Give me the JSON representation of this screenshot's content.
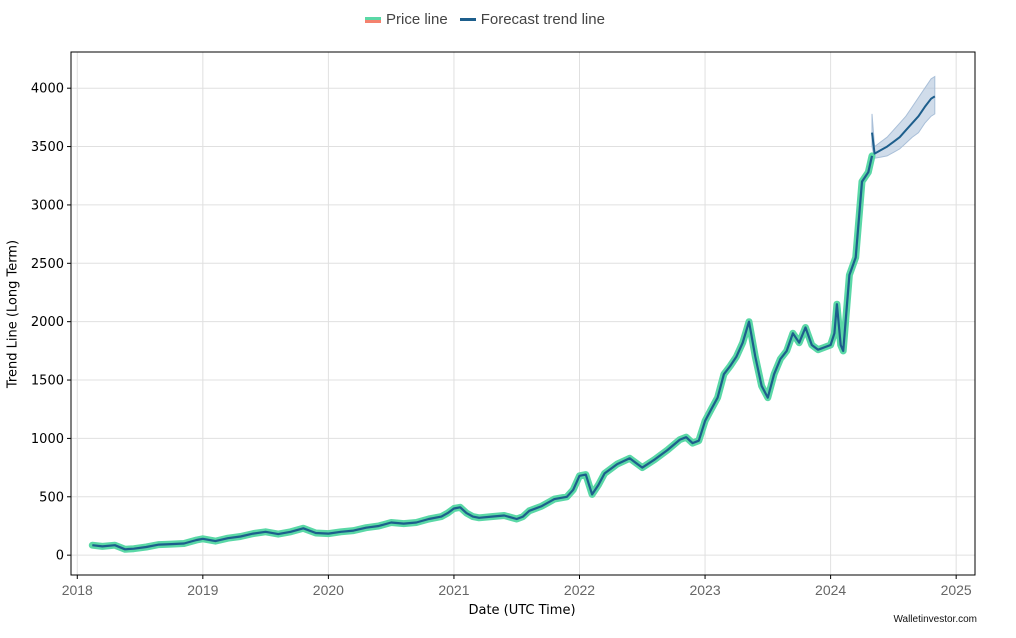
{
  "legend": {
    "price_label": "Price line",
    "forecast_label": "Forecast trend line"
  },
  "watermark": "Walletinvestor.com",
  "colors": {
    "price_line": "#5ad8a6",
    "price_line_alt": "#f4826e",
    "forecast_line": "#1d5e8c",
    "confidence_band": "#a9bfd8",
    "grid": "#e0e0e0"
  },
  "chart_data": {
    "type": "line",
    "title": "",
    "xlabel": "Date (UTC Time)",
    "ylabel": "Trend Line (Long Term)",
    "xlim": [
      2017.95,
      2025.15
    ],
    "ylim": [
      -170,
      4310
    ],
    "xticks": [
      2018,
      2019,
      2020,
      2021,
      2022,
      2023,
      2024,
      2025
    ],
    "xtick_labels": [
      "2018",
      "2019",
      "2020",
      "2021",
      "2022",
      "2023",
      "2024",
      "2025"
    ],
    "yticks": [
      0,
      500,
      1000,
      1500,
      2000,
      2500,
      3000,
      3500,
      4000
    ],
    "ytick_labels": [
      "0",
      "500",
      "1000",
      "1500",
      "2000",
      "2500",
      "3000",
      "3500",
      "4000"
    ],
    "grid": true,
    "legend_position": "top-center",
    "series": [
      {
        "name": "Price line",
        "x": [
          2018.12,
          2018.2,
          2018.3,
          2018.38,
          2018.45,
          2018.55,
          2018.65,
          2018.75,
          2018.85,
          2018.95,
          2019.0,
          2019.1,
          2019.2,
          2019.3,
          2019.4,
          2019.5,
          2019.6,
          2019.7,
          2019.8,
          2019.9,
          2020.0,
          2020.1,
          2020.2,
          2020.3,
          2020.4,
          2020.5,
          2020.6,
          2020.7,
          2020.8,
          2020.9,
          2020.95,
          2021.0,
          2021.05,
          2021.1,
          2021.15,
          2021.2,
          2021.3,
          2021.4,
          2021.5,
          2021.55,
          2021.6,
          2021.7,
          2021.8,
          2021.9,
          2021.95,
          2022.0,
          2022.05,
          2022.1,
          2022.15,
          2022.2,
          2022.3,
          2022.4,
          2022.5,
          2022.6,
          2022.7,
          2022.8,
          2022.85,
          2022.9,
          2022.95,
          2023.0,
          2023.05,
          2023.1,
          2023.15,
          2023.2,
          2023.25,
          2023.3,
          2023.35,
          2023.4,
          2023.45,
          2023.5,
          2023.55,
          2023.6,
          2023.65,
          2023.7,
          2023.75,
          2023.8,
          2023.85,
          2023.9,
          2023.95,
          2024.0,
          2024.03,
          2024.05,
          2024.08,
          2024.1,
          2024.15,
          2024.2,
          2024.25,
          2024.3,
          2024.33
        ],
        "values": [
          85,
          75,
          85,
          50,
          55,
          70,
          90,
          95,
          100,
          130,
          140,
          120,
          145,
          160,
          185,
          200,
          180,
          200,
          230,
          190,
          185,
          200,
          210,
          235,
          250,
          280,
          270,
          280,
          310,
          330,
          360,
          400,
          410,
          360,
          330,
          320,
          330,
          340,
          310,
          330,
          380,
          420,
          480,
          500,
          560,
          680,
          690,
          520,
          600,
          700,
          780,
          830,
          750,
          820,
          900,
          990,
          1010,
          960,
          980,
          1150,
          1250,
          1350,
          1550,
          1620,
          1700,
          1820,
          2000,
          1700,
          1450,
          1350,
          1550,
          1680,
          1750,
          1900,
          1820,
          1950,
          1800,
          1760,
          1780,
          1800,
          1900,
          2150,
          1800,
          1750,
          2400,
          2550,
          3200,
          3280,
          3420
        ]
      },
      {
        "name": "Forecast trend line",
        "x": [
          2024.33,
          2024.35,
          2024.4,
          2024.45,
          2024.5,
          2024.55,
          2024.6,
          2024.65,
          2024.7,
          2024.75,
          2024.8,
          2024.83
        ],
        "values": [
          3620,
          3440,
          3470,
          3500,
          3540,
          3580,
          3640,
          3700,
          3760,
          3840,
          3910,
          3930
        ],
        "lower": [
          3500,
          3400,
          3410,
          3420,
          3450,
          3480,
          3530,
          3580,
          3620,
          3700,
          3760,
          3780
        ],
        "upper": [
          3780,
          3500,
          3540,
          3580,
          3640,
          3700,
          3760,
          3840,
          3920,
          4000,
          4080,
          4100
        ]
      }
    ]
  }
}
